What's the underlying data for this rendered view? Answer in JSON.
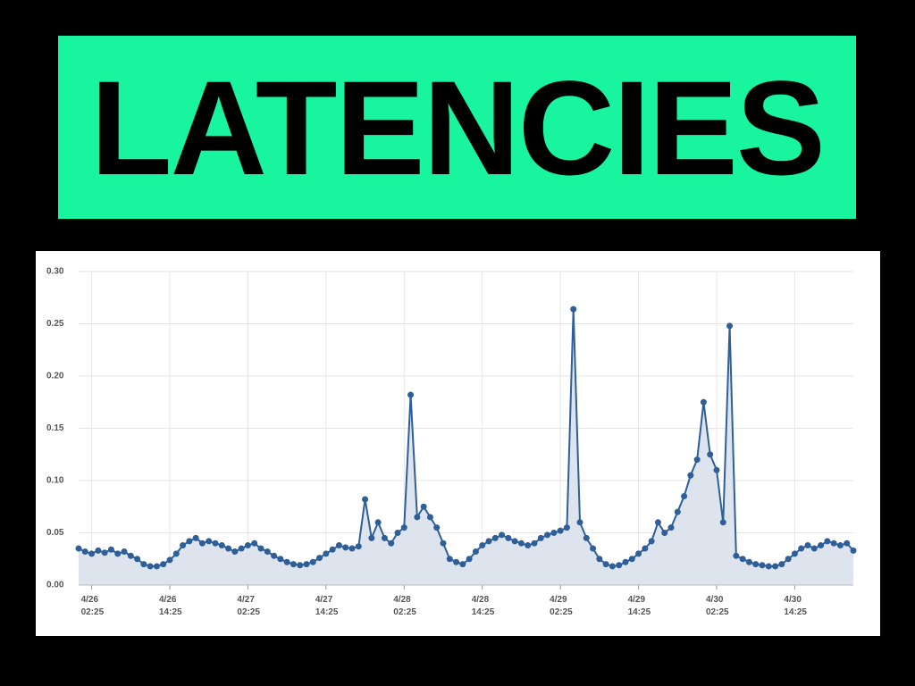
{
  "chart_data": {
    "type": "line",
    "title": "LATENCIES",
    "color": "#2f5f98",
    "area_color": "#dde4ee",
    "grid": true,
    "x": [
      "4/26 00:25",
      "4/26 01:25",
      "4/26 02:25",
      "4/26 03:25",
      "4/26 04:25",
      "4/26 05:25",
      "4/26 06:25",
      "4/26 07:25",
      "4/26 08:25",
      "4/26 09:25",
      "4/26 10:25",
      "4/26 11:25",
      "4/26 12:25",
      "4/26 13:25",
      "4/26 14:25",
      "4/26 15:25",
      "4/26 16:25",
      "4/26 17:25",
      "4/26 18:25",
      "4/26 19:25",
      "4/26 20:25",
      "4/26 21:25",
      "4/26 22:25",
      "4/26 23:25",
      "4/27 00:25",
      "4/27 01:25",
      "4/27 02:25",
      "4/27 03:25",
      "4/27 04:25",
      "4/27 05:25",
      "4/27 06:25",
      "4/27 07:25",
      "4/27 08:25",
      "4/27 09:25",
      "4/27 10:25",
      "4/27 11:25",
      "4/27 12:25",
      "4/27 13:25",
      "4/27 14:25",
      "4/27 15:25",
      "4/27 16:25",
      "4/27 17:25",
      "4/27 18:25",
      "4/27 19:25",
      "4/27 20:25",
      "4/27 21:25",
      "4/27 22:25",
      "4/27 23:25",
      "4/28 00:25",
      "4/28 01:25",
      "4/28 02:25",
      "4/28 03:25",
      "4/28 04:25",
      "4/28 05:25",
      "4/28 06:25",
      "4/28 07:25",
      "4/28 08:25",
      "4/28 09:25",
      "4/28 10:25",
      "4/28 11:25",
      "4/28 12:25",
      "4/28 13:25",
      "4/28 14:25",
      "4/28 15:25",
      "4/28 16:25",
      "4/28 17:25",
      "4/28 18:25",
      "4/28 19:25",
      "4/28 20:25",
      "4/28 21:25",
      "4/28 22:25",
      "4/28 23:25",
      "4/29 00:25",
      "4/29 01:25",
      "4/29 02:25",
      "4/29 03:25",
      "4/29 04:25",
      "4/29 05:25",
      "4/29 06:25",
      "4/29 07:25",
      "4/29 08:25",
      "4/29 09:25",
      "4/29 10:25",
      "4/29 11:25",
      "4/29 12:25",
      "4/29 13:25",
      "4/29 14:25",
      "4/29 15:25",
      "4/29 16:25",
      "4/29 17:25",
      "4/29 18:25",
      "4/29 19:25",
      "4/29 20:25",
      "4/29 21:25",
      "4/29 22:25",
      "4/29 23:25",
      "4/30 00:25",
      "4/30 01:25",
      "4/30 02:25",
      "4/30 03:25",
      "4/30 04:25",
      "4/30 05:25",
      "4/30 06:25",
      "4/30 07:25",
      "4/30 08:25",
      "4/30 09:25",
      "4/30 10:25",
      "4/30 11:25",
      "4/30 12:25",
      "4/30 13:25",
      "4/30 14:25",
      "4/30 15:25",
      "4/30 16:25",
      "4/30 17:25",
      "4/30 18:25",
      "4/30 19:25",
      "4/30 20:25",
      "4/30 21:25",
      "4/30 22:25",
      "4/30 23:25"
    ],
    "values": [
      0.035,
      0.032,
      0.03,
      0.033,
      0.031,
      0.034,
      0.03,
      0.032,
      0.028,
      0.025,
      0.02,
      0.018,
      0.018,
      0.02,
      0.024,
      0.03,
      0.038,
      0.042,
      0.045,
      0.04,
      0.042,
      0.04,
      0.038,
      0.035,
      0.032,
      0.035,
      0.038,
      0.04,
      0.035,
      0.032,
      0.028,
      0.025,
      0.022,
      0.02,
      0.019,
      0.02,
      0.022,
      0.026,
      0.03,
      0.034,
      0.038,
      0.036,
      0.035,
      0.037,
      0.082,
      0.045,
      0.06,
      0.045,
      0.04,
      0.05,
      0.055,
      0.182,
      0.065,
      0.075,
      0.065,
      0.055,
      0.04,
      0.025,
      0.022,
      0.02,
      0.025,
      0.032,
      0.038,
      0.042,
      0.045,
      0.048,
      0.045,
      0.042,
      0.04,
      0.038,
      0.04,
      0.045,
      0.048,
      0.05,
      0.052,
      0.055,
      0.264,
      0.06,
      0.045,
      0.035,
      0.025,
      0.02,
      0.018,
      0.019,
      0.022,
      0.025,
      0.03,
      0.035,
      0.042,
      0.06,
      0.05,
      0.055,
      0.07,
      0.085,
      0.105,
      0.12,
      0.175,
      0.125,
      0.11,
      0.06,
      0.248,
      0.028,
      0.025,
      0.022,
      0.02,
      0.019,
      0.018,
      0.018,
      0.02,
      0.025,
      0.03,
      0.035,
      0.038,
      0.035,
      0.038,
      0.042,
      0.04,
      0.038,
      0.04,
      0.033
    ],
    "xlim": [
      "4/26 00:25",
      "4/30 23:25"
    ],
    "xticks": [
      "4/26 02:25",
      "4/26 14:25",
      "4/27 02:25",
      "4/27 14:25",
      "4/28 02:25",
      "4/28 14:25",
      "4/29 02:25",
      "4/29 14:25",
      "4/30 02:25",
      "4/30 14:25"
    ],
    "ylim": [
      0,
      0.3
    ],
    "yticks": [
      {
        "value": 0,
        "label": "0.00"
      },
      0.05,
      {
        "value": 0.1,
        "label": "0.10"
      },
      0.15,
      {
        "value": 0.2,
        "label": "0.20"
      },
      0.25,
      {
        "value": 0.3,
        "label": "0.30"
      }
    ]
  }
}
